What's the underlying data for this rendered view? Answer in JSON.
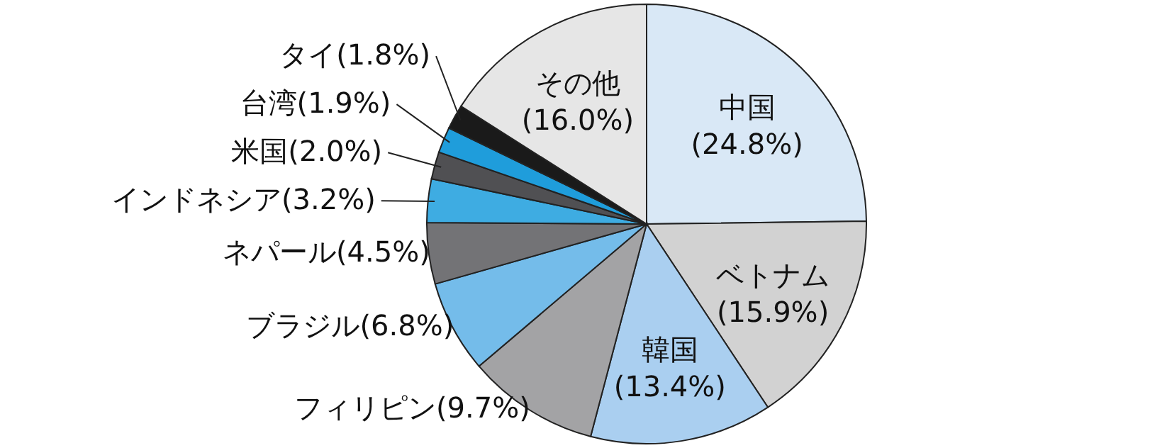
{
  "chart_data": {
    "type": "pie",
    "categories": [
      "中国",
      "ベトナム",
      "韓国",
      "フィリピン",
      "ブラジル",
      "ネパール",
      "インドネシア",
      "米国",
      "台湾",
      "タイ",
      "その他"
    ],
    "values": [
      24.8,
      15.9,
      13.4,
      9.7,
      6.8,
      4.5,
      3.2,
      2.0,
      1.9,
      1.8,
      16.0
    ],
    "value_labels": [
      "(24.8%)",
      "(15.9%)",
      "(13.4%)",
      "(9.7%)",
      "(6.8%)",
      "(4.5%)",
      "(3.2%)",
      "(2.0%)",
      "(1.9%)",
      "(1.8%)",
      "(16.0%)"
    ],
    "colors": [
      "#d9e8f6",
      "#d2d2d2",
      "#aacff0",
      "#a3a3a5",
      "#74bcea",
      "#737376",
      "#3eace2",
      "#505053",
      "#1f9ddb",
      "#1a1a1a",
      "#e6e6e6"
    ]
  }
}
